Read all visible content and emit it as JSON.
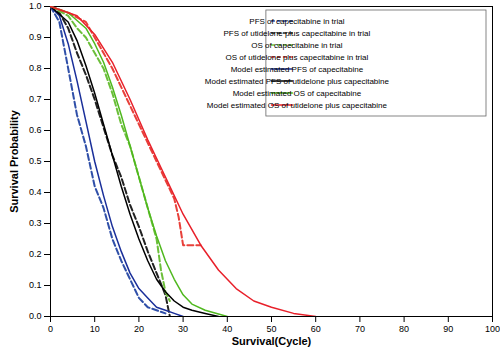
{
  "chart_data": {
    "type": "line",
    "x_label": "Survival(Cycle)",
    "y_label": "Survival Probability",
    "xlim": [
      0,
      100
    ],
    "xticks": [
      0,
      10,
      20,
      30,
      40,
      50,
      60,
      70,
      80,
      90,
      100
    ],
    "ylim": [
      0,
      1
    ],
    "yticks": [
      {
        "value": 0,
        "label": "0.0"
      },
      {
        "value": 0.1,
        "label": "0.1"
      },
      {
        "value": 0.2,
        "label": "0.2"
      },
      {
        "value": 0.3,
        "label": "0.3"
      },
      {
        "value": 0.4,
        "label": "0.4"
      },
      {
        "value": 0.5,
        "label": "0.5"
      },
      {
        "value": 0.6,
        "label": "0.6"
      },
      {
        "value": 0.7,
        "label": "0.7"
      },
      {
        "value": 0.8,
        "label": "0.8"
      },
      {
        "value": 0.9,
        "label": "0.9"
      },
      {
        "value": 1,
        "label": "1.0"
      }
    ],
    "grid": false,
    "legend": "upper right",
    "series": [
      {
        "name": "PFS of capecitabine in trial",
        "color": "#2f4fa8",
        "line_style": "dashed",
        "x": [
          0,
          2,
          4,
          6,
          8,
          10,
          12,
          14,
          16,
          18,
          20,
          22,
          24,
          26
        ],
        "values": [
          1,
          0.95,
          0.8,
          0.65,
          0.55,
          0.42,
          0.35,
          0.25,
          0.18,
          0.12,
          0.06,
          0.03,
          0.02,
          0.01
        ]
      },
      {
        "name": "PFS of utidelone plus capecitabine in trial",
        "color": "#222222",
        "line_style": "dashed",
        "x": [
          0,
          2,
          4,
          6,
          8,
          10,
          12,
          14,
          16,
          18,
          20,
          22,
          24,
          26,
          27
        ],
        "values": [
          1,
          0.98,
          0.93,
          0.85,
          0.78,
          0.7,
          0.61,
          0.52,
          0.45,
          0.36,
          0.29,
          0.21,
          0.14,
          0.07,
          0
        ]
      },
      {
        "name": "OS of capecitabine in trial",
        "color": "#6cbf3a",
        "line_style": "dashed",
        "x": [
          0,
          4,
          6,
          8,
          10,
          12,
          14,
          16,
          18,
          20,
          22,
          24,
          25,
          26,
          27
        ],
        "values": [
          1,
          0.97,
          0.93,
          0.9,
          0.85,
          0.8,
          0.72,
          0.62,
          0.55,
          0.45,
          0.35,
          0.25,
          0.15,
          0.08,
          0.05
        ]
      },
      {
        "name": "OS of utidelone plus capecitabine in trial",
        "color": "#e8403a",
        "line_style": "dashed",
        "x": [
          0,
          4,
          8,
          12,
          14,
          16,
          18,
          20,
          22,
          24,
          26,
          28,
          29,
          30,
          34
        ],
        "values": [
          1,
          0.98,
          0.95,
          0.85,
          0.8,
          0.74,
          0.68,
          0.62,
          0.56,
          0.5,
          0.44,
          0.38,
          0.32,
          0.23,
          0.23
        ]
      },
      {
        "name": "Model estimated PFS of capecitabine",
        "color": "#1a2f9a",
        "line_style": "solid",
        "x": [
          0,
          2,
          4,
          6,
          8,
          10,
          12,
          14,
          16,
          18,
          20,
          22,
          24,
          26,
          28,
          30
        ],
        "values": [
          1,
          0.97,
          0.88,
          0.76,
          0.63,
          0.5,
          0.39,
          0.29,
          0.21,
          0.14,
          0.09,
          0.06,
          0.03,
          0.02,
          0.01,
          0
        ]
      },
      {
        "name": "Model estimated PFS of utidelone plus capecitabine",
        "color": "#000000",
        "line_style": "solid",
        "x": [
          0,
          4,
          6,
          8,
          10,
          12,
          14,
          16,
          18,
          20,
          22,
          24,
          26,
          28,
          30,
          32,
          35,
          38
        ],
        "values": [
          1,
          0.95,
          0.89,
          0.81,
          0.72,
          0.62,
          0.52,
          0.42,
          0.33,
          0.25,
          0.18,
          0.12,
          0.08,
          0.05,
          0.03,
          0.02,
          0.01,
          0
        ]
      },
      {
        "name": "Model estimated OS of capecitabine",
        "color": "#4fb81e",
        "line_style": "solid",
        "x": [
          0,
          4,
          8,
          10,
          12,
          14,
          16,
          18,
          20,
          22,
          24,
          26,
          28,
          30,
          32,
          35,
          40
        ],
        "values": [
          1,
          0.98,
          0.93,
          0.88,
          0.82,
          0.74,
          0.65,
          0.55,
          0.45,
          0.35,
          0.26,
          0.18,
          0.12,
          0.07,
          0.04,
          0.02,
          0
        ]
      },
      {
        "name": "Model estimated OS of utidelone plus capecitabine",
        "color": "#e8202a",
        "line_style": "solid",
        "x": [
          0,
          6,
          10,
          14,
          18,
          22,
          26,
          30,
          34,
          38,
          42,
          46,
          50,
          55,
          60
        ],
        "values": [
          1,
          0.97,
          0.91,
          0.82,
          0.7,
          0.57,
          0.45,
          0.33,
          0.23,
          0.15,
          0.09,
          0.05,
          0.03,
          0.01,
          0
        ]
      }
    ]
  }
}
